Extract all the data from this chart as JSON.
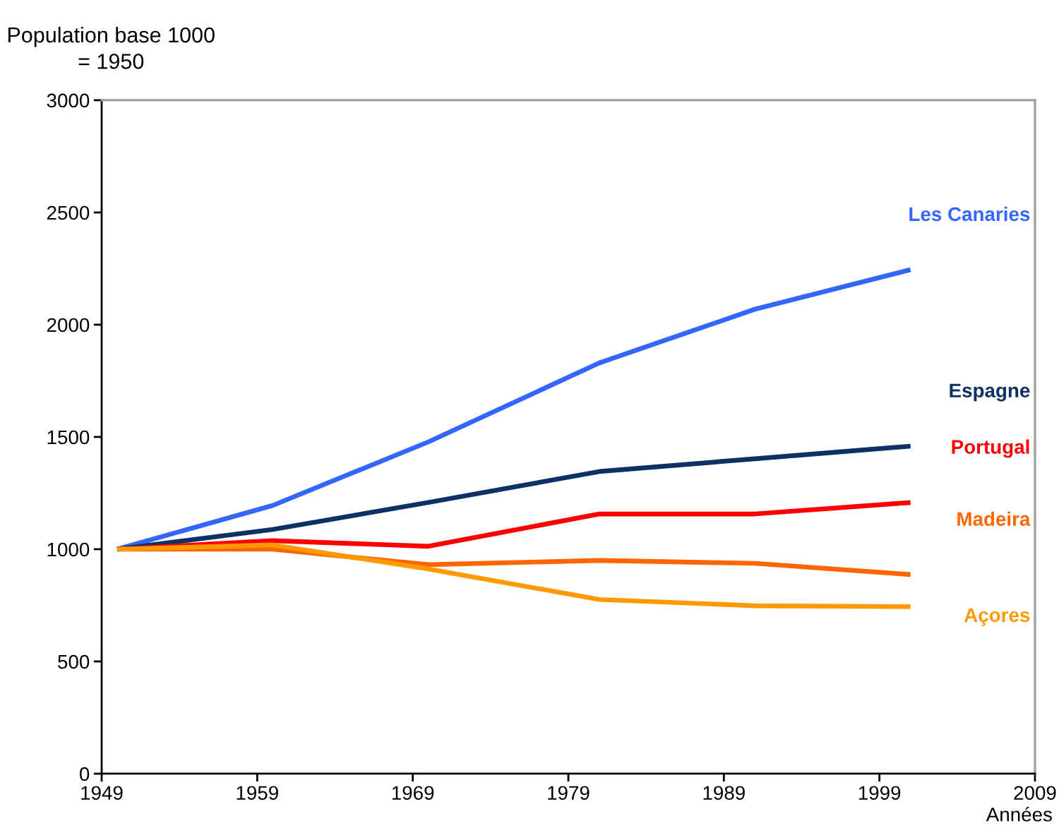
{
  "chart_data": {
    "type": "line",
    "ylabel": "Population base 1000\n= 1950",
    "xlabel": "Années",
    "x": [
      1950,
      1960,
      1970,
      1981,
      1991,
      2001
    ],
    "series": [
      {
        "name": "Les Canaries",
        "color": "#3366ff",
        "values": [
          1000,
          1195,
          1478,
          1830,
          2069,
          2245
        ]
      },
      {
        "name": "Espagne",
        "color": "#0d3163",
        "values": [
          1000,
          1088,
          1208,
          1346,
          1403,
          1459
        ]
      },
      {
        "name": "Portugal",
        "color": "#ff0000",
        "values": [
          1000,
          1038,
          1013,
          1157,
          1157,
          1208
        ]
      },
      {
        "name": "Madeira",
        "color": "#ff6600",
        "values": [
          1000,
          1000,
          931,
          950,
          937,
          887
        ]
      },
      {
        "name": "Açores",
        "color": "#ff9900",
        "values": [
          1000,
          1019,
          912,
          776,
          748,
          744
        ]
      }
    ],
    "xlim": [
      1949,
      2009
    ],
    "xticks": [
      1949,
      1959,
      1969,
      1979,
      1989,
      1999,
      2009
    ],
    "ylim": [
      0,
      3000
    ],
    "yticks": [
      0,
      500,
      1000,
      1500,
      2000,
      2500,
      3000
    ],
    "grid": false,
    "legend": false
  }
}
